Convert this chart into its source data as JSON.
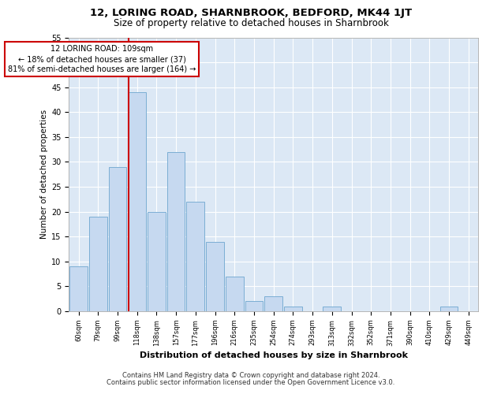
{
  "title": "12, LORING ROAD, SHARNBROOK, BEDFORD, MK44 1JT",
  "subtitle": "Size of property relative to detached houses in Sharnbrook",
  "xlabel": "Distribution of detached houses by size in Sharnbrook",
  "ylabel": "Number of detached properties",
  "categories": [
    "60sqm",
    "79sqm",
    "99sqm",
    "118sqm",
    "138sqm",
    "157sqm",
    "177sqm",
    "196sqm",
    "216sqm",
    "235sqm",
    "254sqm",
    "274sqm",
    "293sqm",
    "313sqm",
    "332sqm",
    "352sqm",
    "371sqm",
    "390sqm",
    "410sqm",
    "429sqm",
    "449sqm"
  ],
  "values": [
    9,
    19,
    29,
    44,
    20,
    32,
    22,
    14,
    7,
    2,
    3,
    1,
    0,
    1,
    0,
    0,
    0,
    0,
    0,
    1,
    0
  ],
  "bar_color": "#c6d9f0",
  "bar_edge_color": "#7baed4",
  "red_line_x": 2.55,
  "annotation_text": "12 LORING ROAD: 109sqm\n← 18% of detached houses are smaller (37)\n81% of semi-detached houses are larger (164) →",
  "annotation_box_color": "#ffffff",
  "annotation_box_edge": "#cc0000",
  "ylim": [
    0,
    55
  ],
  "yticks": [
    0,
    5,
    10,
    15,
    20,
    25,
    30,
    35,
    40,
    45,
    50,
    55
  ],
  "background_color": "#dce8f5",
  "grid_color": "#ffffff",
  "footer1": "Contains HM Land Registry data © Crown copyright and database right 2024.",
  "footer2": "Contains public sector information licensed under the Open Government Licence v3.0."
}
